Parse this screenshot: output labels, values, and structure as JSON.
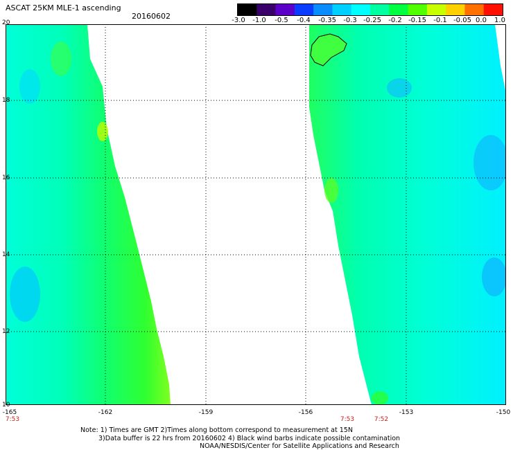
{
  "header": {
    "title": "ASCAT 25KM MLE-1 ascending",
    "date": "20160602"
  },
  "colorbar": {
    "labels": [
      "-3.0",
      "-1.0",
      "-0.5",
      "-0.4",
      "-0.35",
      "-0.3",
      "-0.25",
      "-0.2",
      "-0.15",
      "-0.1",
      "-0.05",
      "0.0",
      "1.0"
    ],
    "colors": [
      "#000000",
      "#3a006a",
      "#5a00c8",
      "#0a3cff",
      "#0a8cff",
      "#00d0ff",
      "#00ffff",
      "#00ffa0",
      "#00ff40",
      "#50ff00",
      "#c8ff00",
      "#ffd000",
      "#ff7000",
      "#ff1000"
    ]
  },
  "map": {
    "lat_labels": [
      "20",
      "18",
      "16",
      "14",
      "12",
      "10"
    ],
    "lon_labels": [
      "-165",
      "-162",
      "-159",
      "-156",
      "-153",
      "-150"
    ],
    "pass_times": [
      "7:53",
      "7:53",
      "7:52"
    ],
    "lat_range": [
      10,
      20
    ],
    "lon_range": [
      -165,
      -150
    ]
  },
  "notes": {
    "line1": "Note: 1) Times are GMT 2)Times along bottom correspond to measurement at 15N",
    "line2": "3)Data buffer is 22 hrs from 20160602 4) Black wind barbs indicate possible contamination",
    "line3": "NOAA/NESDIS/Center for Satellite Applications and Research"
  }
}
